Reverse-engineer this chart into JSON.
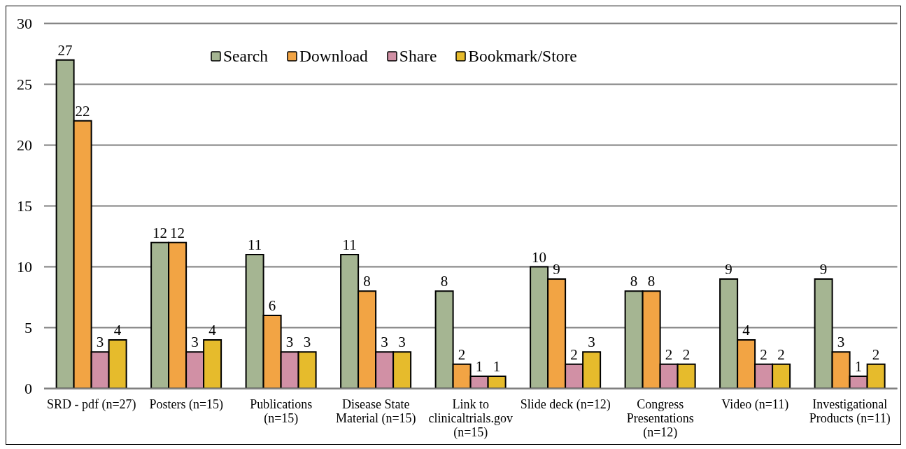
{
  "chart_data": {
    "type": "bar",
    "categories": [
      "SRD - pdf (n=27)",
      "Posters (n=15)",
      "Publications (n=15)",
      "Disease State Material (n=15)",
      "Link to clinicaltrials.gov (n=15)",
      "Slide deck (n=12)",
      "Congress Presentations (n=12)",
      "Video (n=11)",
      "Investigational Products (n=11)"
    ],
    "series": [
      {
        "name": "Search",
        "color": "#a5b592",
        "values": [
          27,
          12,
          11,
          11,
          8,
          10,
          8,
          9,
          9
        ]
      },
      {
        "name": "Download",
        "color": "#f2a444",
        "values": [
          22,
          12,
          6,
          8,
          2,
          9,
          8,
          4,
          3
        ]
      },
      {
        "name": "Share",
        "color": "#d190a5",
        "values": [
          3,
          3,
          3,
          3,
          1,
          2,
          2,
          2,
          1
        ]
      },
      {
        "name": "Bookmark/Store",
        "color": "#e6bb2c",
        "values": [
          4,
          4,
          3,
          3,
          1,
          3,
          2,
          2,
          2
        ]
      }
    ],
    "ylim": [
      0,
      30
    ],
    "yticks": [
      0,
      5,
      10,
      15,
      20,
      25,
      30
    ],
    "grid": "y",
    "legend": "top",
    "data_labels": true
  }
}
